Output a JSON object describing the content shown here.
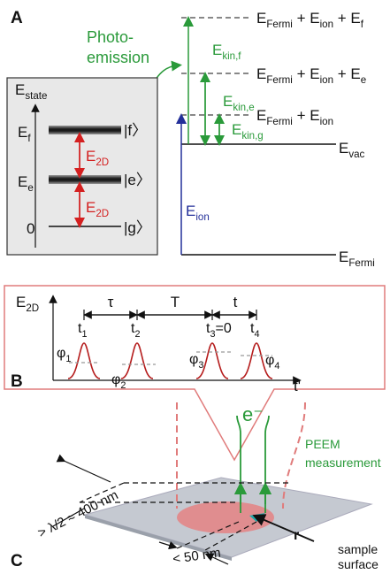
{
  "panel_a": {
    "label": "A",
    "photoemission": [
      "Photo-",
      "emission"
    ],
    "levels": [
      [
        [
          "E",
          "Fermi"
        ],
        [
          " + E",
          "ion"
        ],
        [
          " + E",
          "f"
        ]
      ],
      [
        [
          "E",
          "Fermi"
        ],
        [
          " + E",
          "ion"
        ],
        [
          " + E",
          "e"
        ]
      ],
      [
        [
          "E",
          "Fermi"
        ],
        [
          " + E",
          "ion"
        ]
      ],
      [
        [
          "E",
          "vac"
        ]
      ],
      [
        [
          "E",
          "Fermi"
        ]
      ]
    ],
    "arrows": [
      [
        [
          "E",
          "kin,f"
        ]
      ],
      [
        [
          "E",
          "kin,e"
        ]
      ],
      [
        [
          "E",
          "kin,g"
        ]
      ],
      [
        [
          "E",
          "ion"
        ]
      ]
    ],
    "inset": {
      "axis": [
        [
          "E",
          "state"
        ]
      ],
      "states": [
        [
          [
            "E",
            "f"
          ]
        ],
        [
          [
            "E",
            "e"
          ]
        ],
        [
          [
            "0"
          ]
        ]
      ],
      "kets": [
        "|f〉",
        "|e〉",
        "|g〉"
      ],
      "transitions": [
        [
          [
            "E",
            "2D"
          ]
        ],
        [
          [
            "E",
            "2D"
          ]
        ]
      ]
    }
  },
  "panel_b": {
    "label": "B",
    "axis": [
      [
        "E",
        "2D"
      ]
    ],
    "intervals": [
      "τ",
      "T",
      "t"
    ],
    "times": [
      [
        [
          "t",
          "1"
        ]
      ],
      [
        [
          "t",
          "2"
        ]
      ],
      [
        [
          "t",
          "3"
        ],
        [
          "=0"
        ]
      ],
      [
        [
          "t",
          "4"
        ]
      ]
    ],
    "phases": [
      [
        [
          "φ",
          "1"
        ]
      ],
      [
        [
          "φ",
          "2"
        ]
      ],
      [
        [
          "φ",
          "3"
        ]
      ],
      [
        [
          "φ",
          "4"
        ]
      ]
    ],
    "x_axis": "t'"
  },
  "panel_c": {
    "label": "C",
    "electron": "e⁻",
    "peem": [
      "PEEM",
      "measurement"
    ],
    "width": "> λ/2 ≈ 400 nm",
    "spot": "< 50 nm",
    "r": "r",
    "sample": [
      "sample",
      "surface"
    ]
  }
}
